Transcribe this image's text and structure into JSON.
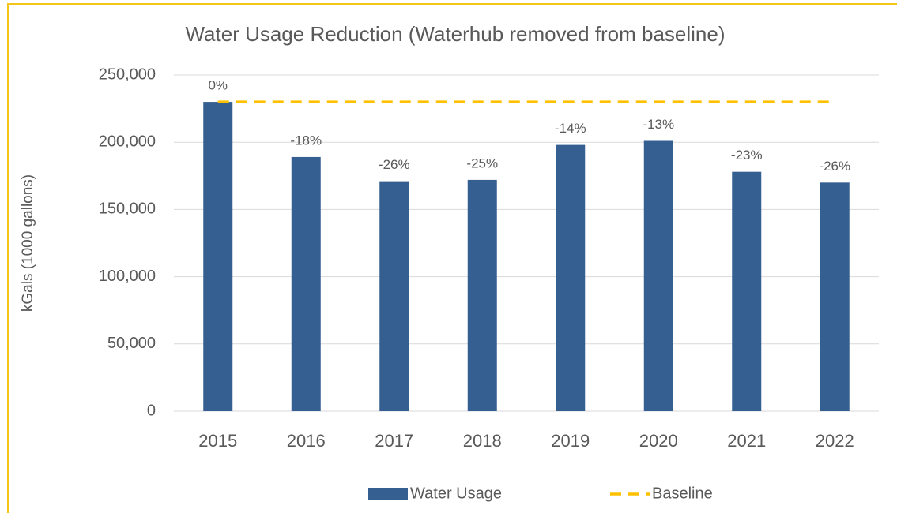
{
  "chart_data": {
    "type": "bar",
    "title": "Water Usage Reduction (Waterhub removed from baseline)",
    "y_label": "kGals (1000 gallons)",
    "categories": [
      "2015",
      "2016",
      "2017",
      "2018",
      "2019",
      "2020",
      "2021",
      "2022"
    ],
    "series": [
      {
        "name": "Water Usage",
        "type": "bar",
        "color": "#355f91",
        "values": [
          230000,
          189000,
          171000,
          172000,
          198000,
          201000,
          178000,
          170000
        ]
      },
      {
        "name": "Baseline",
        "type": "line",
        "line_style": "dashed",
        "color": "#ffc000",
        "values": [
          230000,
          230000,
          230000,
          230000,
          230000,
          230000,
          230000,
          230000
        ]
      }
    ],
    "annotations": [
      "0%",
      "-18%",
      "-26%",
      "-25%",
      "-14%",
      "-13%",
      "-23%",
      "-26%"
    ],
    "ylim": [
      0,
      250000
    ],
    "yticks": [
      0,
      {
        "value": 50000,
        "label": "50,000"
      },
      {
        "value": 100000,
        "label": "100,000"
      },
      {
        "value": 150000,
        "label": "150,000"
      },
      {
        "value": 200000,
        "label": "200,000"
      },
      {
        "value": 250000,
        "label": "250,000"
      }
    ],
    "grid": true,
    "legend": "bottom"
  }
}
